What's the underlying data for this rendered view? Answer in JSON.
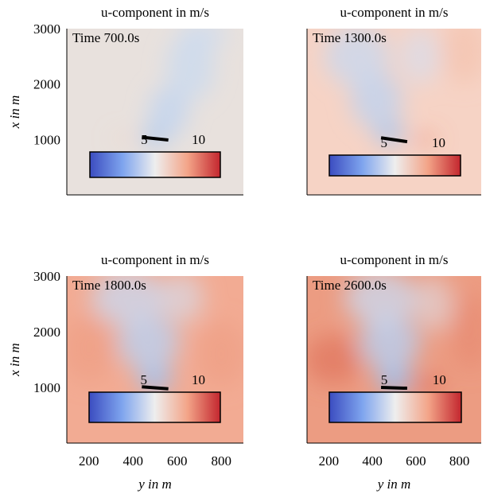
{
  "chart_data": [
    {
      "type": "heatmap",
      "title": "u-component in m/s",
      "annotation": "Time 700.0s",
      "ylabel": "x in m",
      "xlabel": "",
      "x_ticks": [],
      "y_ticks": [
        "3000",
        "2000",
        "1000"
      ],
      "xlim": [
        100,
        900
      ],
      "ylim": [
        0,
        3000
      ],
      "colorbar": {
        "ticks": [
          "5",
          "10"
        ],
        "range": [
          0,
          12
        ],
        "tick_values": [
          5,
          10
        ]
      },
      "background": "#e8e1dd",
      "obstacle": {
        "y": [
          440,
          560
        ],
        "x": [
          990,
          1040
        ]
      },
      "wake": [
        {
          "y": 500,
          "x": 1050,
          "ry": 60,
          "rx": 180,
          "color": "#a8c6ee",
          "opacity": 0.8
        },
        {
          "y": 560,
          "x": 1500,
          "ry": 90,
          "rx": 450,
          "color": "#bcd3f2",
          "opacity": 0.7
        },
        {
          "y": 660,
          "x": 2300,
          "ry": 110,
          "rx": 600,
          "color": "#c4d8f3",
          "opacity": 0.65
        },
        {
          "y": 720,
          "x": 2900,
          "ry": 110,
          "rx": 250,
          "color": "#c8dbf4",
          "opacity": 0.6
        }
      ],
      "warm": [
        {
          "y": 360,
          "x": 1020,
          "ry": 60,
          "rx": 60,
          "color": "#f4c6b4",
          "opacity": 0.5
        }
      ]
    },
    {
      "type": "heatmap",
      "title": "u-component in m/s",
      "annotation": "Time 1300.0s",
      "ylabel": "",
      "xlabel": "",
      "x_ticks": [],
      "y_ticks": [],
      "xlim": [
        100,
        900
      ],
      "ylim": [
        0,
        3000
      ],
      "colorbar": {
        "ticks": [
          "5",
          "10"
        ],
        "range": [
          0,
          12
        ],
        "tick_values": [
          5,
          10
        ]
      },
      "background": "#f6d3c5",
      "obstacle": {
        "y": [
          440,
          560
        ],
        "x": [
          960,
          1030
        ]
      },
      "wake": [
        {
          "y": 480,
          "x": 1100,
          "ry": 70,
          "rx": 200,
          "color": "#a6c4ee",
          "opacity": 0.85
        },
        {
          "y": 420,
          "x": 1700,
          "ry": 120,
          "rx": 500,
          "color": "#bcd3f2",
          "opacity": 0.75
        },
        {
          "y": 330,
          "x": 2500,
          "ry": 150,
          "rx": 550,
          "color": "#c4d9f3",
          "opacity": 0.7
        },
        {
          "y": 620,
          "x": 2500,
          "ry": 90,
          "rx": 500,
          "color": "#d2e0f3",
          "opacity": 0.6
        }
      ],
      "warm": [
        {
          "y": 640,
          "x": 1000,
          "ry": 60,
          "rx": 80,
          "color": "#e8745a",
          "opacity": 0.65
        },
        {
          "y": 820,
          "x": 2600,
          "ry": 100,
          "rx": 600,
          "color": "#f4bca6",
          "opacity": 0.5
        }
      ]
    },
    {
      "type": "heatmap",
      "title": "u-component in m/s",
      "annotation": "Time 1800.0s",
      "ylabel": "x in m",
      "xlabel": "y in m",
      "x_ticks": [
        "200",
        "400",
        "600",
        "800"
      ],
      "y_ticks": [
        "3000",
        "2000",
        "1000"
      ],
      "xlim": [
        100,
        900
      ],
      "ylim": [
        0,
        3000
      ],
      "colorbar": {
        "ticks": [
          "5",
          "10"
        ],
        "range": [
          0,
          12
        ],
        "tick_values": [
          5,
          10
        ]
      },
      "background": "#f2ab93",
      "obstacle": {
        "y": [
          440,
          560
        ],
        "x": [
          975,
          1010
        ]
      },
      "wake": [
        {
          "y": 500,
          "x": 1150,
          "ry": 80,
          "rx": 260,
          "color": "#a3c1ec",
          "opacity": 0.9
        },
        {
          "y": 470,
          "x": 1800,
          "ry": 140,
          "rx": 500,
          "color": "#bad1f1",
          "opacity": 0.8
        },
        {
          "y": 380,
          "x": 2600,
          "ry": 170,
          "rx": 500,
          "color": "#c8daf3",
          "opacity": 0.75
        },
        {
          "y": 620,
          "x": 2600,
          "ry": 100,
          "rx": 450,
          "color": "#d4e1f3",
          "opacity": 0.6
        }
      ],
      "warm": [
        {
          "y": 200,
          "x": 1700,
          "ry": 120,
          "rx": 600,
          "color": "#ee9a80",
          "opacity": 0.5
        },
        {
          "y": 800,
          "x": 1600,
          "ry": 110,
          "rx": 600,
          "color": "#ee9a80",
          "opacity": 0.5
        }
      ]
    },
    {
      "type": "heatmap",
      "title": "u-component in m/s",
      "annotation": "Time 2600.0s",
      "ylabel": "",
      "xlabel": "y in m",
      "x_ticks": [
        "200",
        "400",
        "600",
        "800"
      ],
      "y_ticks": [],
      "xlim": [
        100,
        900
      ],
      "ylim": [
        0,
        3000
      ],
      "colorbar": {
        "ticks": [
          "5",
          "10"
        ],
        "range": [
          0,
          12
        ],
        "tick_values": [
          5,
          10
        ]
      },
      "background": "#ec9c82",
      "obstacle": {
        "y": [
          440,
          560
        ],
        "x": [
          985,
          1000
        ]
      },
      "wake": [
        {
          "y": 500,
          "x": 1150,
          "ry": 80,
          "rx": 280,
          "color": "#a0beeb",
          "opacity": 0.9
        },
        {
          "y": 480,
          "x": 1800,
          "ry": 140,
          "rx": 500,
          "color": "#b8cff1",
          "opacity": 0.8
        },
        {
          "y": 440,
          "x": 2600,
          "ry": 170,
          "rx": 500,
          "color": "#c9dbf3",
          "opacity": 0.75
        },
        {
          "y": 680,
          "x": 2500,
          "ry": 90,
          "rx": 500,
          "color": "#dde4f1",
          "opacity": 0.55
        }
      ],
      "warm": [
        {
          "y": 220,
          "x": 1500,
          "ry": 130,
          "rx": 450,
          "color": "#dc6a52",
          "opacity": 0.55
        },
        {
          "y": 650,
          "x": 1050,
          "ry": 80,
          "rx": 120,
          "color": "#d65540",
          "opacity": 0.6
        },
        {
          "y": 850,
          "x": 2000,
          "ry": 90,
          "rx": 700,
          "color": "#e58068",
          "opacity": 0.45
        }
      ]
    }
  ]
}
